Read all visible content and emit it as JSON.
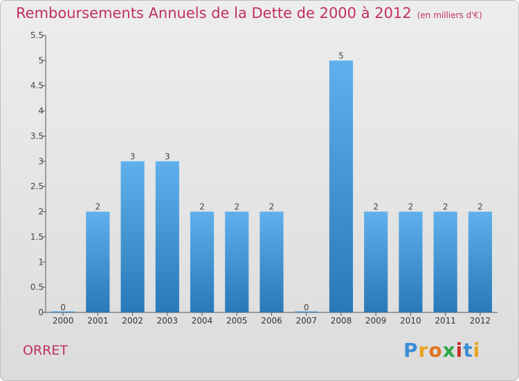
{
  "title": "Remboursements Annuels de la Dette de 2000 à 2012",
  "unit": "(en milliers d'€)",
  "commune": "ORRET",
  "logo": "Proxiti",
  "colors": {
    "title": "#c0305e",
    "bar_top": "#5fb0ec",
    "bar_bottom": "#2978b8"
  },
  "chart_data": {
    "type": "bar",
    "title": "Remboursements Annuels de la Dette de 2000 à 2012",
    "categories": [
      "2000",
      "2001",
      "2002",
      "2003",
      "2004",
      "2005",
      "2006",
      "2007",
      "2008",
      "2009",
      "2010",
      "2011",
      "2012"
    ],
    "values": [
      0,
      2,
      3,
      3,
      2,
      2,
      2,
      0,
      5,
      2,
      2,
      2,
      2
    ],
    "data_labels": [
      "0",
      "2",
      "3",
      "3",
      "2",
      "2",
      "2",
      "0",
      "5",
      "2",
      "2",
      "2",
      "2"
    ],
    "y_ticks": [
      "0",
      "0.5",
      "1",
      "1.5",
      "2",
      "2.5",
      "3",
      "3.5",
      "4",
      "4.5",
      "5",
      "5.5"
    ],
    "ylim": [
      0,
      5.5
    ],
    "grid": false,
    "legend": "none"
  }
}
